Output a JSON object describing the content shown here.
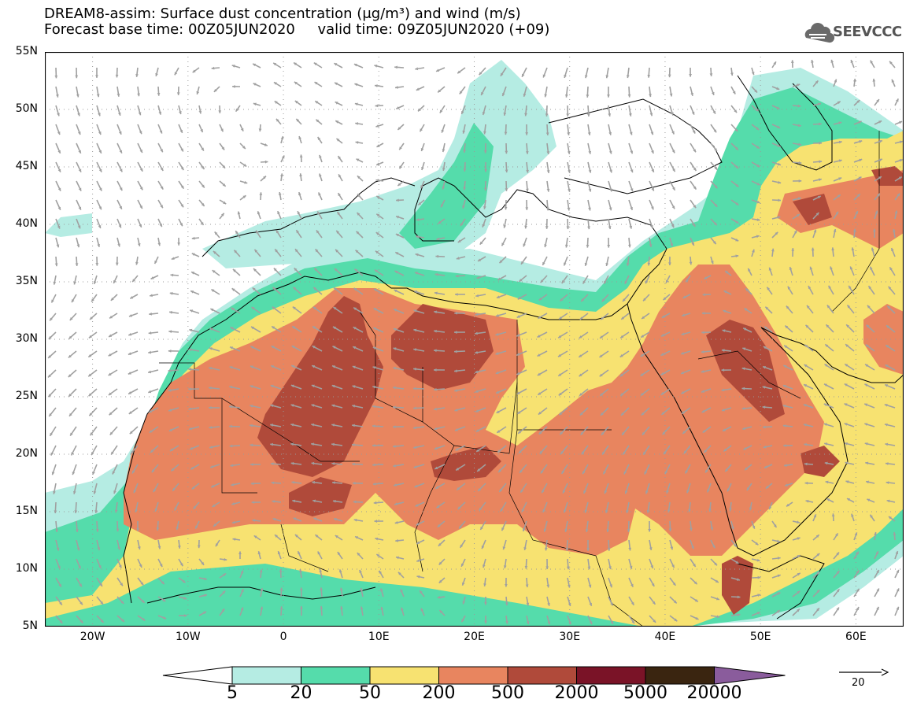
{
  "title": {
    "line1": "DREAM8-assim: Surface dust concentration (μg/m³) and wind (m/s)",
    "line2": "Forecast base time: 00Z05JUN2020     valid time: 09Z05JUN2020 (+09)"
  },
  "logo": {
    "text": "SEEVCCC",
    "icon": "cloud-logo-icon"
  },
  "axes": {
    "lat_labels": [
      "55N",
      "50N",
      "45N",
      "40N",
      "35N",
      "30N",
      "25N",
      "20N",
      "15N",
      "10N",
      "5N"
    ],
    "lon_labels": [
      "20W",
      "10W",
      "0",
      "10E",
      "20E",
      "30E",
      "40E",
      "50E",
      "60E"
    ],
    "lat_range": [
      5,
      55
    ],
    "lon_range": [
      -25,
      65
    ]
  },
  "colorbar": {
    "labels": [
      "5",
      "20",
      "50",
      "200",
      "500",
      "2000",
      "5000",
      "20000"
    ],
    "colors": [
      "#ffffff",
      "#b5ece3",
      "#55dcab",
      "#f7e271",
      "#e8855f",
      "#b04a3a",
      "#7a1327",
      "#3a2510",
      "#8a5c9c"
    ]
  },
  "reference_vector": {
    "label": "20"
  },
  "dust_colors": {
    "c5": "#b5ece3",
    "c20": "#55dcab",
    "c50": "#f7e271",
    "c200": "#e8855f",
    "c500": "#b04a3a"
  },
  "arrow_color": "#a0a0a0"
}
